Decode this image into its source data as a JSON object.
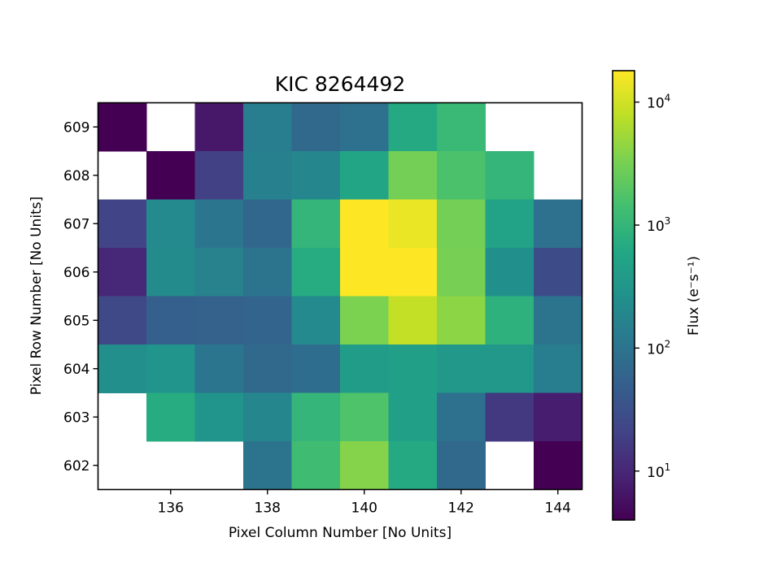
{
  "chart_data": {
    "type": "heatmap",
    "title": "KIC 8264492",
    "xlabel": "Pixel Column Number [No Units]",
    "ylabel": "Pixel Row Number [No Units]",
    "colorbar_label": "Flux (e⁻s⁻¹)",
    "colormap": "viridis",
    "color_scale": "log",
    "color_range": [
      4,
      18000
    ],
    "x_columns": [
      135,
      136,
      137,
      138,
      139,
      140,
      141,
      142,
      143,
      144
    ],
    "y_rows": [
      609,
      608,
      607,
      606,
      605,
      604,
      603,
      602
    ],
    "xlim": [
      134.5,
      144.5
    ],
    "ylim": [
      601.5,
      609.5
    ],
    "x_ticks": [
      136,
      138,
      140,
      142,
      144
    ],
    "y_ticks": [
      602,
      603,
      604,
      605,
      606,
      607,
      608,
      609
    ],
    "colorbar_ticks": [
      {
        "value": 10,
        "label": "10",
        "exp": "1"
      },
      {
        "value": 100,
        "label": "10",
        "exp": "2"
      },
      {
        "value": 1000,
        "label": "10",
        "exp": "3"
      },
      {
        "value": 10000,
        "label": "10",
        "exp": "4"
      }
    ],
    "flux_grid": [
      [
        4,
        null,
        7,
        140,
        70,
        90,
        650,
        1100,
        null,
        null
      ],
      [
        null,
        4,
        20,
        150,
        190,
        550,
        3000,
        1600,
        1000,
        null
      ],
      [
        22,
        210,
        110,
        65,
        1000,
        18000,
        14000,
        3000,
        500,
        90
      ],
      [
        10,
        220,
        160,
        100,
        700,
        18000,
        18000,
        3200,
        260,
        28
      ],
      [
        25,
        50,
        55,
        60,
        210,
        3400,
        8500,
        4200,
        850,
        100
      ],
      [
        250,
        300,
        105,
        70,
        80,
        400,
        450,
        350,
        350,
        140
      ],
      [
        null,
        700,
        300,
        190,
        1000,
        1700,
        450,
        90,
        16,
        8
      ],
      [
        null,
        null,
        null,
        100,
        1300,
        3800,
        650,
        70,
        null,
        4
      ]
    ]
  }
}
